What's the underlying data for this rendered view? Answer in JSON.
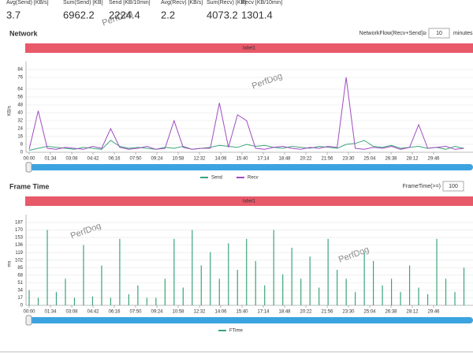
{
  "stats": [
    {
      "label": "Avg(Send) [KB/s]",
      "value": 3.7
    },
    {
      "label": "Sum(Send) [KB]",
      "value": 6962.2
    },
    {
      "label": "Send [KB/10min]",
      "value": 2224.4
    },
    {
      "label": "Avg(Recv) [KB/s]",
      "value": 2.2
    },
    {
      "label": "Sum(Recv) [KB]",
      "value": 4073.2
    },
    {
      "label": "Recv [KB/10min]",
      "value": 1301.4
    }
  ],
  "watermark": "PerfDog",
  "chart_data": [
    {
      "type": "line",
      "title": "Network",
      "label_bar": "label1",
      "filter": {
        "label": "NetworkFlow(Recv+Send)≥",
        "value": 10,
        "unit": "minutes"
      },
      "y_label": "KB/s",
      "x": [
        0,
        40,
        80,
        120,
        160,
        200,
        240,
        280,
        320,
        360,
        400,
        440,
        480,
        520,
        560,
        600,
        640,
        680,
        720,
        760,
        800,
        840,
        880,
        920,
        960,
        1000,
        1040,
        1080,
        1120,
        1160,
        1200,
        1240,
        1280,
        1320,
        1360,
        1400,
        1440,
        1480,
        1520,
        1560,
        1600,
        1640,
        1680,
        1720,
        1760,
        1800,
        1840,
        1880,
        1920
      ],
      "series": [
        {
          "name": "Send",
          "color": "#3aa57a",
          "values": [
            2,
            4,
            6,
            5,
            4,
            3,
            5,
            4,
            3,
            12,
            6,
            4,
            5,
            4,
            3,
            5,
            4,
            6,
            3,
            4,
            5,
            7,
            6,
            5,
            8,
            6,
            7,
            5,
            4,
            6,
            5,
            4,
            6,
            5,
            4,
            8,
            9,
            12,
            6,
            5,
            7,
            4,
            5,
            6,
            4,
            5,
            3,
            6,
            4
          ]
        },
        {
          "name": "Recv",
          "color": "#a04cc0",
          "values": [
            3,
            42,
            4,
            3,
            5,
            4,
            3,
            6,
            4,
            24,
            5,
            3,
            4,
            6,
            3,
            4,
            32,
            5,
            3,
            4,
            4,
            50,
            5,
            38,
            32,
            4,
            3,
            5,
            6,
            4,
            3,
            5,
            4,
            6,
            5,
            76,
            4,
            3,
            5,
            4,
            6,
            3,
            5,
            28,
            4,
            5,
            6,
            3,
            4
          ]
        }
      ],
      "xlim": [
        0,
        1960
      ],
      "xticks": [
        {
          "value": 0,
          "label": "00:00"
        },
        {
          "value": 94,
          "label": "01:34"
        },
        {
          "value": 188,
          "label": "03:08"
        },
        {
          "value": 282,
          "label": "04:42"
        },
        {
          "value": 376,
          "label": "06:16"
        },
        {
          "value": 470,
          "label": "07:50"
        },
        {
          "value": 564,
          "label": "09:24"
        },
        {
          "value": 658,
          "label": "10:58"
        },
        {
          "value": 752,
          "label": "12:32"
        },
        {
          "value": 846,
          "label": "14:06"
        },
        {
          "value": 940,
          "label": "15:40"
        },
        {
          "value": 1034,
          "label": "17:14"
        },
        {
          "value": 1128,
          "label": "18:48"
        },
        {
          "value": 1222,
          "label": "20:22"
        },
        {
          "value": 1316,
          "label": "21:56"
        },
        {
          "value": 1410,
          "label": "23:30"
        },
        {
          "value": 1504,
          "label": "25:04"
        },
        {
          "value": 1598,
          "label": "26:38"
        },
        {
          "value": 1692,
          "label": "28:12"
        },
        {
          "value": 1786,
          "label": "29:46"
        }
      ],
      "ylim": [
        0,
        84
      ],
      "yticks": [
        0,
        8,
        16,
        24,
        32,
        40,
        48,
        56,
        64,
        76,
        84
      ],
      "grid": true
    },
    {
      "type": "bar",
      "title": "Frame Time",
      "label_bar": "label1",
      "filter": {
        "label": "FrameTime(>=)",
        "value": 100
      },
      "y_label": "ms",
      "x": [
        0,
        40,
        80,
        120,
        160,
        200,
        240,
        280,
        320,
        360,
        400,
        440,
        480,
        520,
        560,
        600,
        640,
        680,
        720,
        760,
        800,
        840,
        880,
        920,
        960,
        1000,
        1040,
        1080,
        1120,
        1160,
        1200,
        1240,
        1280,
        1320,
        1360,
        1400,
        1440,
        1480,
        1520,
        1560,
        1600,
        1640,
        1680,
        1720,
        1760,
        1800,
        1840,
        1880,
        1920
      ],
      "series": [
        {
          "name": "FTime",
          "color": "#3aa57a",
          "values": [
            34,
            17,
            170,
            30,
            60,
            17,
            136,
            20,
            90,
            17,
            150,
            25,
            45,
            17,
            17,
            60,
            150,
            40,
            170,
            90,
            120,
            60,
            140,
            80,
            150,
            100,
            45,
            170,
            70,
            130,
            60,
            110,
            40,
            150,
            80,
            60,
            30,
            120,
            100,
            45,
            60,
            30,
            90,
            40,
            25,
            150,
            60,
            30,
            85
          ]
        }
      ],
      "xlim": [
        0,
        1960
      ],
      "xticks": [
        {
          "value": 0,
          "label": "00:00"
        },
        {
          "value": 94,
          "label": "01:34"
        },
        {
          "value": 188,
          "label": "03:08"
        },
        {
          "value": 282,
          "label": "04:42"
        },
        {
          "value": 376,
          "label": "06:16"
        },
        {
          "value": 470,
          "label": "07:50"
        },
        {
          "value": 564,
          "label": "09:24"
        },
        {
          "value": 658,
          "label": "10:58"
        },
        {
          "value": 752,
          "label": "12:32"
        },
        {
          "value": 846,
          "label": "14:06"
        },
        {
          "value": 940,
          "label": "15:40"
        },
        {
          "value": 1034,
          "label": "17:14"
        },
        {
          "value": 1128,
          "label": "18:48"
        },
        {
          "value": 1222,
          "label": "20:22"
        },
        {
          "value": 1316,
          "label": "21:56"
        },
        {
          "value": 1410,
          "label": "23:30"
        },
        {
          "value": 1504,
          "label": "25:04"
        },
        {
          "value": 1598,
          "label": "26:38"
        },
        {
          "value": 1692,
          "label": "28:12"
        },
        {
          "value": 1786,
          "label": "29:46"
        }
      ],
      "ylim": [
        0,
        187
      ],
      "yticks": [
        0,
        17,
        34,
        51,
        68,
        85,
        102,
        119,
        136,
        153,
        170,
        187
      ],
      "grid": true
    }
  ]
}
